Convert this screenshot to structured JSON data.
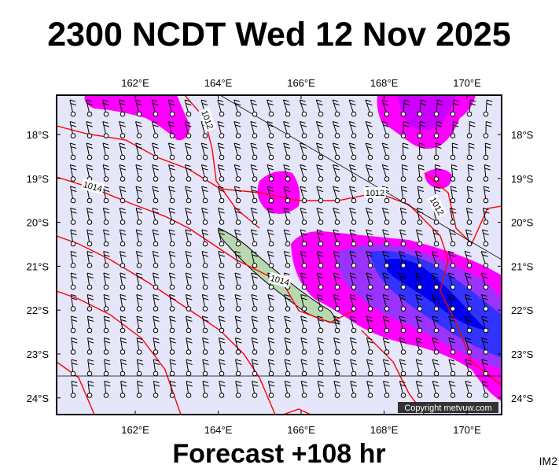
{
  "title": "2300 NCDT Wed 12 Nov 2025",
  "footer": "Forecast +108 hr",
  "corner_label": "IM2",
  "copyright": "Copyright metvuw.com",
  "map": {
    "longitude_labels": [
      "162°E",
      "164°E",
      "166°E",
      "168°E",
      "170°E"
    ],
    "latitude_labels": [
      "18°S",
      "19°S",
      "20°S",
      "21°S",
      "22°S",
      "23°S",
      "24°S"
    ],
    "isobar_labels": [
      "1012",
      "1014",
      "1012",
      "1012",
      "1014"
    ]
  }
}
